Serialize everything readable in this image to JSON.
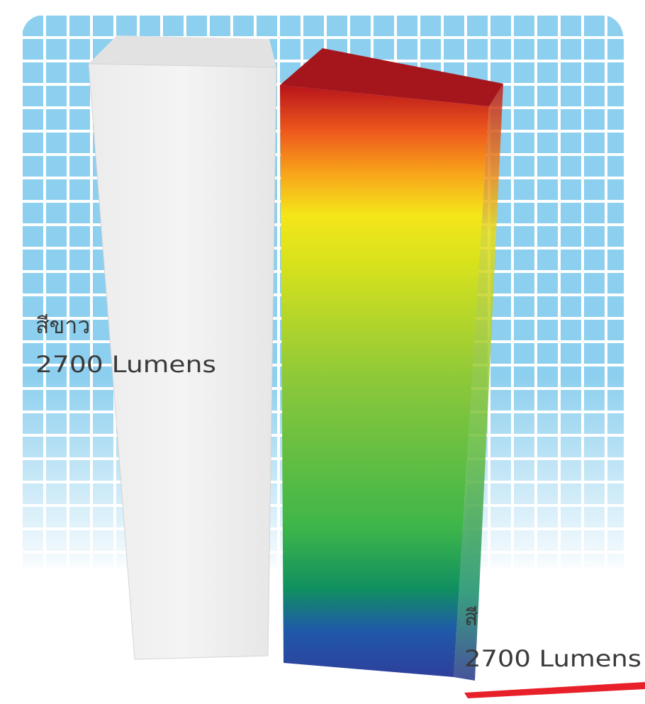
{
  "chart_data": {
    "type": "bar",
    "categories": [
      "สีขาว",
      "สี"
    ],
    "values": [
      2700,
      2700
    ],
    "value_labels": [
      "2700 Lumens",
      "2700 Lumens"
    ]
  }
}
